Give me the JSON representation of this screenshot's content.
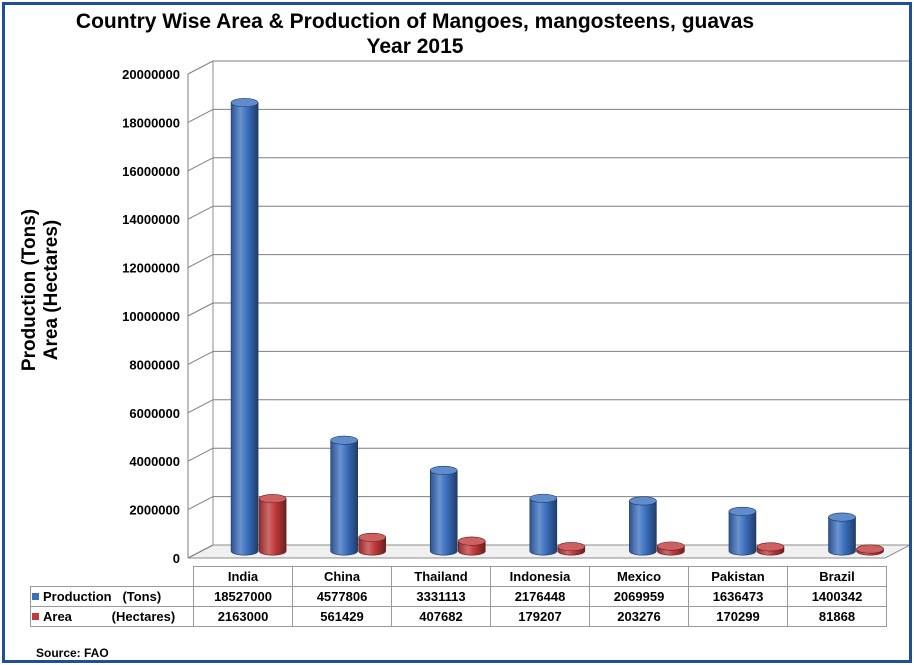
{
  "chart_data": {
    "type": "bar",
    "title": "Country Wise Area & Production of Mangoes, mangosteens, guavas Year 2015",
    "ylabel": [
      "Production (Tons)",
      "Area (Hectares)"
    ],
    "categories": [
      "India",
      "China",
      "Thailand",
      "Indonesia",
      "Mexico",
      "Pakistan",
      "Brazil"
    ],
    "series": [
      {
        "name": "Production   (Tons)",
        "color": "#3a6fbf",
        "values": [
          18527000,
          4577806,
          3331113,
          2176448,
          2069959,
          1636473,
          1400342
        ],
        "value_labels": [
          "18527000",
          "4577806",
          "3331113",
          "2176448",
          "2069959",
          "1636473",
          "1400342"
        ]
      },
      {
        "name": "Area           (Hectares)",
        "color": "#c0393b",
        "values": [
          2163000,
          561429,
          407682,
          179207,
          203276,
          170299,
          81868
        ],
        "value_labels": [
          "2163000",
          "561429",
          "407682",
          "179207",
          "203276",
          "170299",
          "81868"
        ]
      }
    ],
    "ylim": [
      0,
      20000000
    ],
    "yticks": [
      0,
      2000000,
      4000000,
      6000000,
      8000000,
      10000000,
      12000000,
      14000000,
      16000000,
      18000000,
      20000000
    ],
    "ytick_labels": [
      "0",
      "2000000",
      "4000000",
      "6000000",
      "8000000",
      "10000000",
      "12000000",
      "14000000",
      "16000000",
      "18000000",
      "20000000"
    ],
    "grid": true,
    "legend": "data-table",
    "source": "Source: FAO"
  }
}
